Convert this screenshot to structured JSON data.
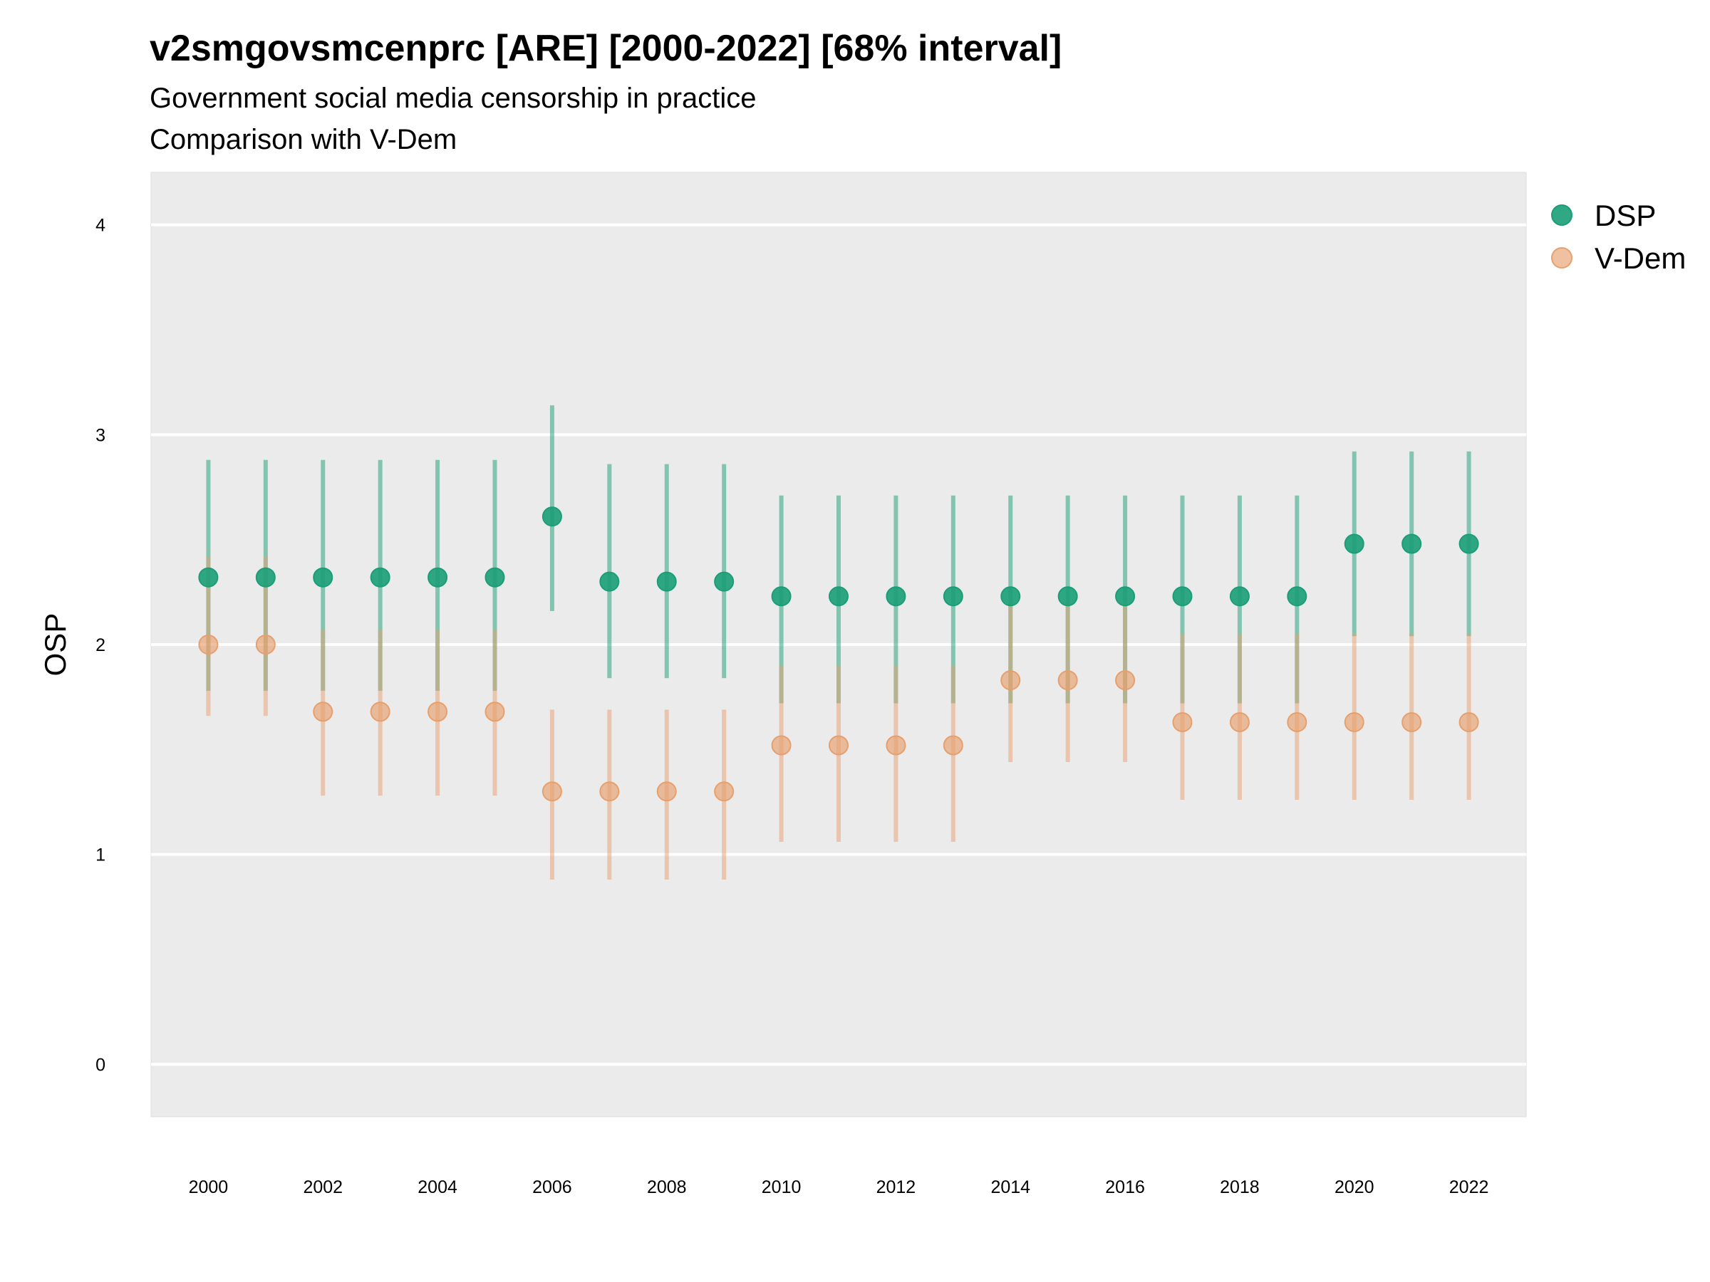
{
  "chart_data": {
    "type": "scatter",
    "title": "v2smgovsmcenprc [ARE] [2000-2022] [68% interval]",
    "subtitle": "Government social media censorship in practice",
    "subtitle2": "Comparison with V-Dem",
    "xlabel": "",
    "ylabel": "OSP",
    "ylim": [
      -0.25,
      4.25
    ],
    "yticks": [
      0,
      1,
      2,
      3,
      4
    ],
    "xlim": [
      1999,
      2023
    ],
    "xticks": [
      2000,
      2002,
      2004,
      2006,
      2008,
      2010,
      2012,
      2014,
      2016,
      2018,
      2020,
      2022
    ],
    "grid": true,
    "legend_position": "right",
    "x": [
      2000,
      2001,
      2002,
      2003,
      2004,
      2005,
      2006,
      2007,
      2008,
      2009,
      2010,
      2011,
      2012,
      2013,
      2014,
      2015,
      2016,
      2017,
      2018,
      2019,
      2020,
      2021,
      2022
    ],
    "series": [
      {
        "name": "DSP",
        "color": "#1b9e77",
        "values": [
          2.32,
          2.32,
          2.32,
          2.32,
          2.32,
          2.32,
          2.61,
          2.3,
          2.3,
          2.3,
          2.23,
          2.23,
          2.23,
          2.23,
          2.23,
          2.23,
          2.23,
          2.23,
          2.23,
          2.23,
          2.48,
          2.48,
          2.48
        ],
        "lower": [
          1.78,
          1.78,
          1.78,
          1.78,
          1.78,
          1.78,
          2.16,
          1.84,
          1.84,
          1.84,
          1.72,
          1.72,
          1.72,
          1.72,
          1.72,
          1.72,
          1.72,
          1.72,
          1.72,
          1.72,
          2.04,
          2.04,
          2.04
        ],
        "upper": [
          2.88,
          2.88,
          2.88,
          2.88,
          2.88,
          2.88,
          3.14,
          2.86,
          2.86,
          2.86,
          2.71,
          2.71,
          2.71,
          2.71,
          2.71,
          2.71,
          2.71,
          2.71,
          2.71,
          2.71,
          2.92,
          2.92,
          2.92
        ]
      },
      {
        "name": "V-Dem",
        "color": "#e6a06e",
        "values": [
          2.0,
          2.0,
          1.68,
          1.68,
          1.68,
          1.68,
          1.3,
          1.3,
          1.3,
          1.3,
          1.52,
          1.52,
          1.52,
          1.52,
          1.83,
          1.83,
          1.83,
          1.63,
          1.63,
          1.63,
          1.63,
          1.63,
          1.63
        ],
        "lower": [
          1.66,
          1.66,
          1.28,
          1.28,
          1.28,
          1.28,
          0.88,
          0.88,
          0.88,
          0.88,
          1.06,
          1.06,
          1.06,
          1.06,
          1.44,
          1.44,
          1.44,
          1.26,
          1.26,
          1.26,
          1.26,
          1.26,
          1.26
        ],
        "upper": [
          2.42,
          2.42,
          2.07,
          2.07,
          2.07,
          2.07,
          1.69,
          1.69,
          1.69,
          1.69,
          1.9,
          1.9,
          1.9,
          1.9,
          2.21,
          2.21,
          2.21,
          2.05,
          2.05,
          2.05,
          2.05,
          2.05,
          2.05
        ]
      }
    ]
  }
}
